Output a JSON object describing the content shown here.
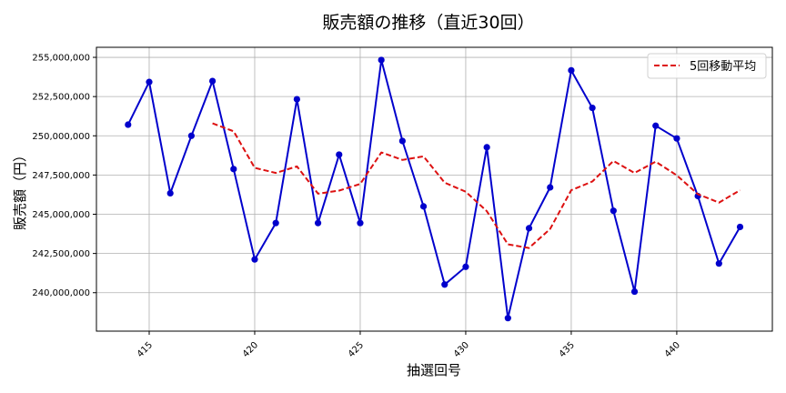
{
  "chart_data": {
    "type": "line",
    "title": "販売額の推移（直近30回）",
    "xlabel": "抽選回号",
    "ylabel": "販売額（円）",
    "x": [
      414,
      415,
      416,
      417,
      418,
      419,
      420,
      421,
      422,
      423,
      424,
      425,
      426,
      427,
      428,
      429,
      430,
      431,
      432,
      433,
      434,
      435,
      436,
      437,
      438,
      439,
      440,
      441,
      442,
      443
    ],
    "series": [
      {
        "name": "販売額",
        "style": "solid-line-with-markers",
        "color": "#0000cc",
        "values": [
          250710000,
          253430000,
          246340000,
          250000000,
          253490000,
          247880000,
          242120000,
          244440000,
          252330000,
          244440000,
          248800000,
          244440000,
          254830000,
          249670000,
          245500000,
          240520000,
          241650000,
          249270000,
          238380000,
          244110000,
          246710000,
          254170000,
          251780000,
          245220000,
          240070000,
          250640000,
          249830000,
          246160000,
          241860000,
          244190000
        ]
      },
      {
        "name": "5回移動平均",
        "style": "dashed",
        "color": "#dd1111",
        "values": [
          null,
          null,
          null,
          null,
          250790000,
          250290000,
          247960000,
          247630000,
          248050000,
          246310000,
          246510000,
          246930000,
          248940000,
          248460000,
          248690000,
          247010000,
          246440000,
          245200000,
          243080000,
          242850000,
          244060000,
          246530000,
          247090000,
          248400000,
          247630000,
          248350000,
          247480000,
          246280000,
          245740000,
          246530000
        ]
      }
    ],
    "xticks": [
      415,
      420,
      425,
      430,
      435,
      440
    ],
    "xtick_labels": [
      "415",
      "420",
      "425",
      "430",
      "435",
      "440"
    ],
    "xtick_rotation": -45,
    "yticks": [
      240000000,
      242500000,
      245000000,
      247500000,
      250000000,
      252500000,
      255000000
    ],
    "ytick_labels": [
      "240,000,000",
      "242,500,000",
      "245,000,000",
      "247,500,000",
      "250,000,000",
      "252,500,000",
      "255,000,000"
    ],
    "xlim": [
      412.5,
      444.53
    ],
    "ylim": [
      237550000,
      255640000
    ],
    "grid": true,
    "legend": {
      "position": "upper right",
      "entries": [
        "5回移動平均"
      ]
    }
  }
}
